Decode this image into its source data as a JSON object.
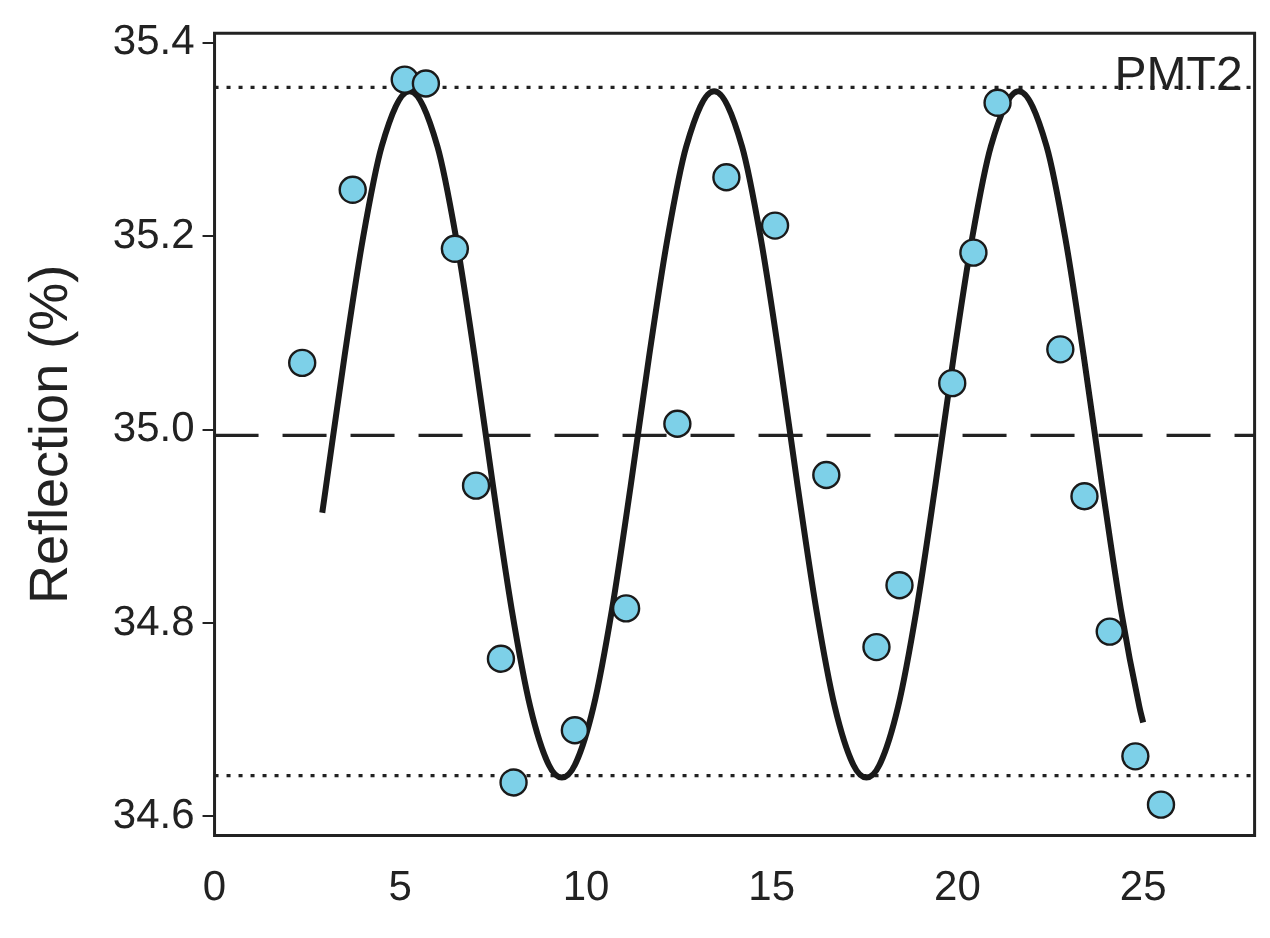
{
  "chart_data": {
    "type": "scatter",
    "ylabel": "Reflection (%)",
    "annotations": [
      "PMT2"
    ],
    "xlim": [
      0,
      28
    ],
    "xticks": [
      0,
      5,
      10,
      15,
      20,
      25
    ],
    "ylim": [
      34.58,
      35.41
    ],
    "yticks": [
      34.6,
      34.8,
      {
        "value": 35,
        "label": "35.0"
      },
      35.2,
      35.4
    ],
    "grid": false,
    "legend": false,
    "marker": "circle",
    "ref_lines": [
      {
        "axis": "y",
        "value": 35.354,
        "label": null,
        "color": "#222222",
        "line_style": "dotted"
      },
      {
        "axis": "y",
        "value": 34.994,
        "label": null,
        "color": "#222222",
        "line_style": "dashed"
      },
      {
        "axis": "y",
        "value": 34.642,
        "label": null,
        "color": "#222222",
        "line_style": "dotted"
      }
    ],
    "series": [
      {
        "type": "line",
        "color": "#1a1a1a",
        "marker": "none",
        "line_style": "solid",
        "x": [
          2.9,
          3.0,
          3.5,
          4.0,
          4.5,
          5.25,
          6.0,
          6.5,
          7.0,
          7.5,
          8.0,
          8.5,
          9.0,
          9.35,
          9.7,
          10.2,
          10.7,
          11.2,
          11.7,
          12.2,
          12.7,
          13.45,
          14.2,
          14.7,
          15.2,
          15.7,
          16.2,
          16.7,
          17.2,
          17.55,
          17.9,
          18.4,
          18.9,
          19.4,
          19.9,
          20.4,
          20.9,
          21.65,
          22.4,
          22.9,
          23.4,
          23.9,
          24.4,
          24.9,
          25.0
        ],
        "values": [
          34.914,
          34.941,
          35.076,
          35.199,
          35.293,
          35.35,
          35.293,
          35.199,
          35.076,
          34.941,
          34.814,
          34.713,
          34.653,
          34.64,
          34.653,
          34.713,
          34.814,
          34.941,
          35.076,
          35.199,
          35.293,
          35.35,
          35.293,
          35.199,
          35.076,
          34.941,
          34.814,
          34.713,
          34.653,
          34.64,
          34.653,
          34.713,
          34.814,
          34.941,
          35.076,
          35.199,
          35.293,
          35.35,
          35.293,
          35.199,
          35.076,
          34.941,
          34.814,
          34.713,
          34.697
        ]
      },
      {
        "type": "scatter",
        "color": "#7dd0e8",
        "x": [
          2.36,
          3.72,
          5.12,
          5.69,
          6.47,
          7.04,
          7.71,
          8.05,
          9.7,
          11.08,
          12.46,
          13.78,
          15.09,
          16.47,
          17.82,
          18.44,
          19.86,
          20.43,
          21.08,
          22.77,
          23.42,
          24.1,
          24.79,
          25.48
        ],
        "values": [
          35.069,
          35.248,
          35.362,
          35.358,
          35.187,
          34.942,
          34.763,
          34.635,
          34.689,
          34.815,
          35.006,
          35.261,
          35.211,
          34.953,
          34.775,
          34.839,
          35.048,
          35.183,
          35.338,
          35.083,
          34.931,
          34.791,
          34.662,
          34.612
        ]
      }
    ]
  }
}
